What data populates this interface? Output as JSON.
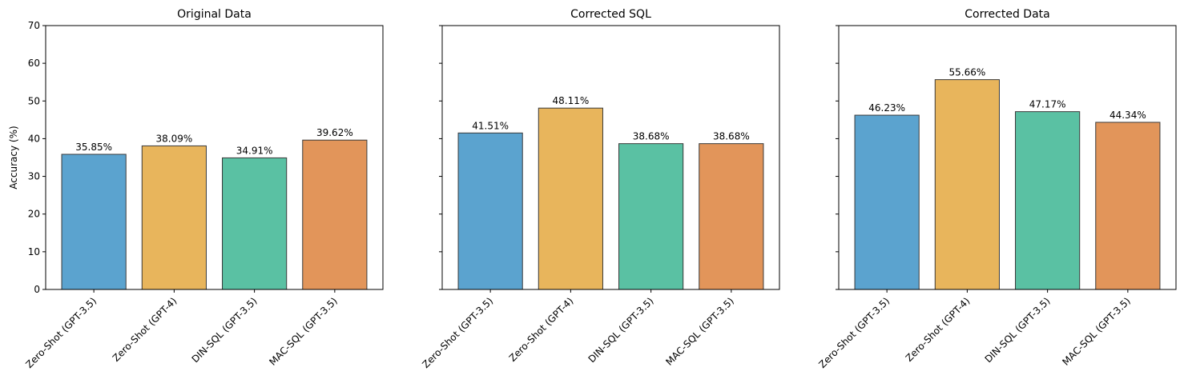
{
  "chart_data": {
    "type": "bar",
    "ylabel": "Accuracy (%)",
    "ylim": [
      0,
      70
    ],
    "yticks": [
      0,
      10,
      20,
      30,
      40,
      50,
      60,
      70
    ],
    "categories": [
      "Zero-Shot (GPT-3.5)",
      "Zero-Shot (GPT-4)",
      "DIN-SQL (GPT-3.5)",
      "MAC-SQL (GPT-3.5)"
    ],
    "colors": [
      "#5BA3CF",
      "#E8B55C",
      "#5AC1A3",
      "#E2955A"
    ],
    "grid": false,
    "panels": [
      {
        "title": "Original Data",
        "values": [
          35.85,
          38.09,
          34.91,
          39.62
        ],
        "labels": [
          "35.85%",
          "38.09%",
          "34.91%",
          "39.62%"
        ]
      },
      {
        "title": "Corrected SQL",
        "values": [
          41.51,
          48.11,
          38.68,
          38.68
        ],
        "labels": [
          "41.51%",
          "48.11%",
          "38.68%",
          "38.68%"
        ]
      },
      {
        "title": "Corrected Data",
        "values": [
          46.23,
          55.66,
          47.17,
          44.34
        ],
        "labels": [
          "46.23%",
          "55.66%",
          "47.17%",
          "44.34%"
        ]
      }
    ]
  }
}
